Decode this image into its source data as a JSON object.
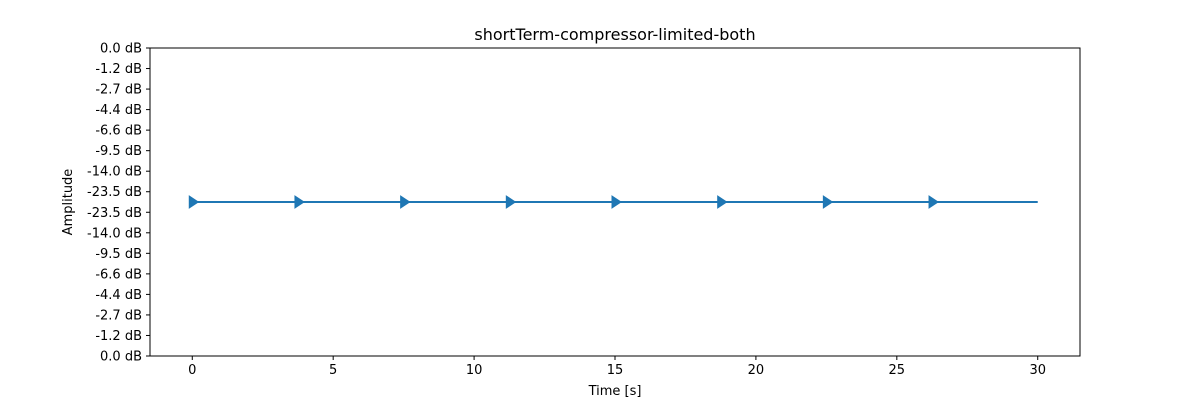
{
  "chart_data": {
    "type": "line",
    "title": "shortTerm-compressor-limited-both",
    "xlabel": "Time [s]",
    "ylabel": "Amplitude",
    "xlim": [
      -1.5,
      31.5
    ],
    "xticks": [
      0,
      5,
      10,
      15,
      20,
      25,
      30
    ],
    "ylim": [
      -1.0,
      1.0
    ],
    "yticks": [
      {
        "value": 1.0,
        "label": "0.0 dB"
      },
      {
        "value": 0.8667,
        "label": "-1.2 dB"
      },
      {
        "value": 0.7333,
        "label": "-2.7 dB"
      },
      {
        "value": 0.6,
        "label": "-4.4 dB"
      },
      {
        "value": 0.4667,
        "label": "-6.6 dB"
      },
      {
        "value": 0.3333,
        "label": "-9.5 dB"
      },
      {
        "value": 0.2,
        "label": "-14.0 dB"
      },
      {
        "value": 0.0667,
        "label": "-23.5 dB"
      },
      {
        "value": -0.0667,
        "label": "-23.5 dB"
      },
      {
        "value": -0.2,
        "label": "-14.0 dB"
      },
      {
        "value": -0.3333,
        "label": "-9.5 dB"
      },
      {
        "value": -0.4667,
        "label": "-6.6 dB"
      },
      {
        "value": -0.6,
        "label": "-4.4 dB"
      },
      {
        "value": -0.7333,
        "label": "-2.7 dB"
      },
      {
        "value": -0.8667,
        "label": "-1.2 dB"
      },
      {
        "value": -1.0,
        "label": "0.0 dB"
      }
    ],
    "grid": false,
    "series": [
      {
        "color": "#1f77b4",
        "marker": "triangle-right",
        "x": [
          0,
          30
        ],
        "y": [
          0,
          0
        ],
        "marker_x": [
          0,
          3.75,
          7.5,
          11.25,
          15,
          18.75,
          22.5,
          26.25
        ]
      }
    ]
  }
}
